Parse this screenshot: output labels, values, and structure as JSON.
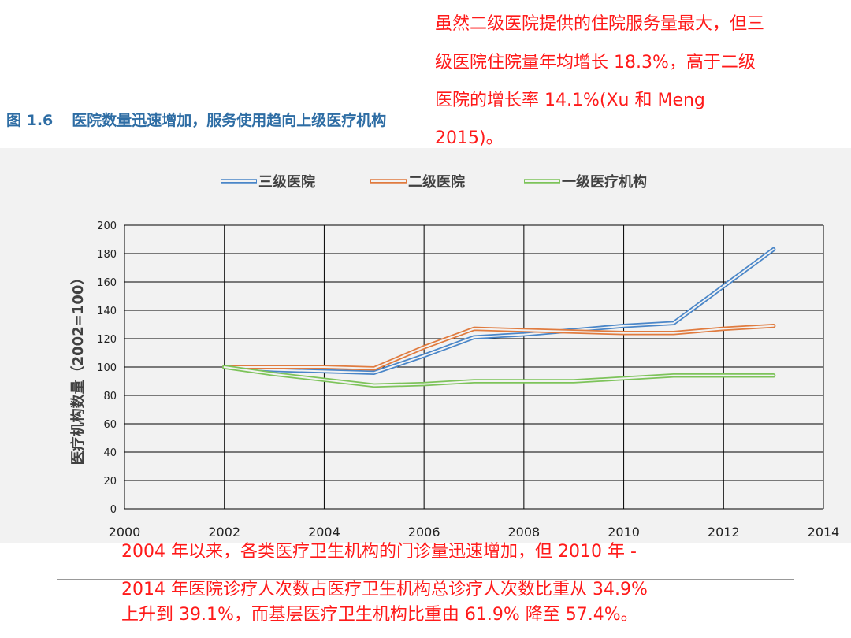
{
  "annotations": {
    "top": [
      "虽然二级医院提供的住院服务量最大，但三",
      "级医院住院量年均增长 18.3%，高于二级",
      "医院的增长率 14.1%(Xu 和 Meng",
      "2015)。"
    ],
    "bottom": [
      "2004 年以来，各类医疗卫生机构的门诊量迅速增加，但 2010 年 -",
      "2014 年医院诊疗人次数占医疗卫生机构总诊疗人次数比重从 34.9%",
      "上升到 39.1%，而基层医疗卫生机构比重由 61.9% 降至 57.4%。"
    ]
  },
  "figure": {
    "number": "图 1.6",
    "caption": "医院数量迅速增加，服务使用趋向上级医疗机构"
  },
  "colors": {
    "annotation": "#ff1a1a",
    "title": "#2e6da4",
    "grid": "#000000"
  },
  "chart_data": {
    "type": "line",
    "title": "",
    "ylabel": "医疗机构数量（2002=100）",
    "xlabel": "",
    "xlim": [
      2000,
      2014
    ],
    "ylim": [
      0,
      200
    ],
    "xticks": [
      2000,
      2002,
      2004,
      2006,
      2008,
      2010,
      2012,
      2014
    ],
    "yticks": [
      0,
      20,
      40,
      60,
      80,
      100,
      120,
      140,
      160,
      180,
      200
    ],
    "grid": true,
    "legend_position": "top",
    "series": [
      {
        "name": "三级医院",
        "color": "#4a86c8",
        "x": [
          2002,
          2003,
          2004,
          2005,
          2006,
          2007,
          2008,
          2009,
          2010,
          2011,
          2012,
          2013
        ],
        "y": [
          100,
          98,
          97,
          96,
          108,
          121,
          123,
          126,
          129,
          131,
          157,
          183
        ]
      },
      {
        "name": "二级医院",
        "color": "#e07b3f",
        "x": [
          2002,
          2003,
          2004,
          2005,
          2006,
          2007,
          2008,
          2009,
          2010,
          2011,
          2012,
          2013
        ],
        "y": [
          100,
          100,
          100,
          99,
          114,
          127,
          126,
          125,
          124,
          124,
          127,
          129
        ]
      },
      {
        "name": "一级医疗机构",
        "color": "#7dc35a",
        "x": [
          2002,
          2003,
          2004,
          2005,
          2006,
          2007,
          2008,
          2009,
          2010,
          2011,
          2012,
          2013
        ],
        "y": [
          100,
          95,
          91,
          87,
          88,
          90,
          90,
          90,
          92,
          94,
          94,
          94
        ]
      }
    ]
  }
}
